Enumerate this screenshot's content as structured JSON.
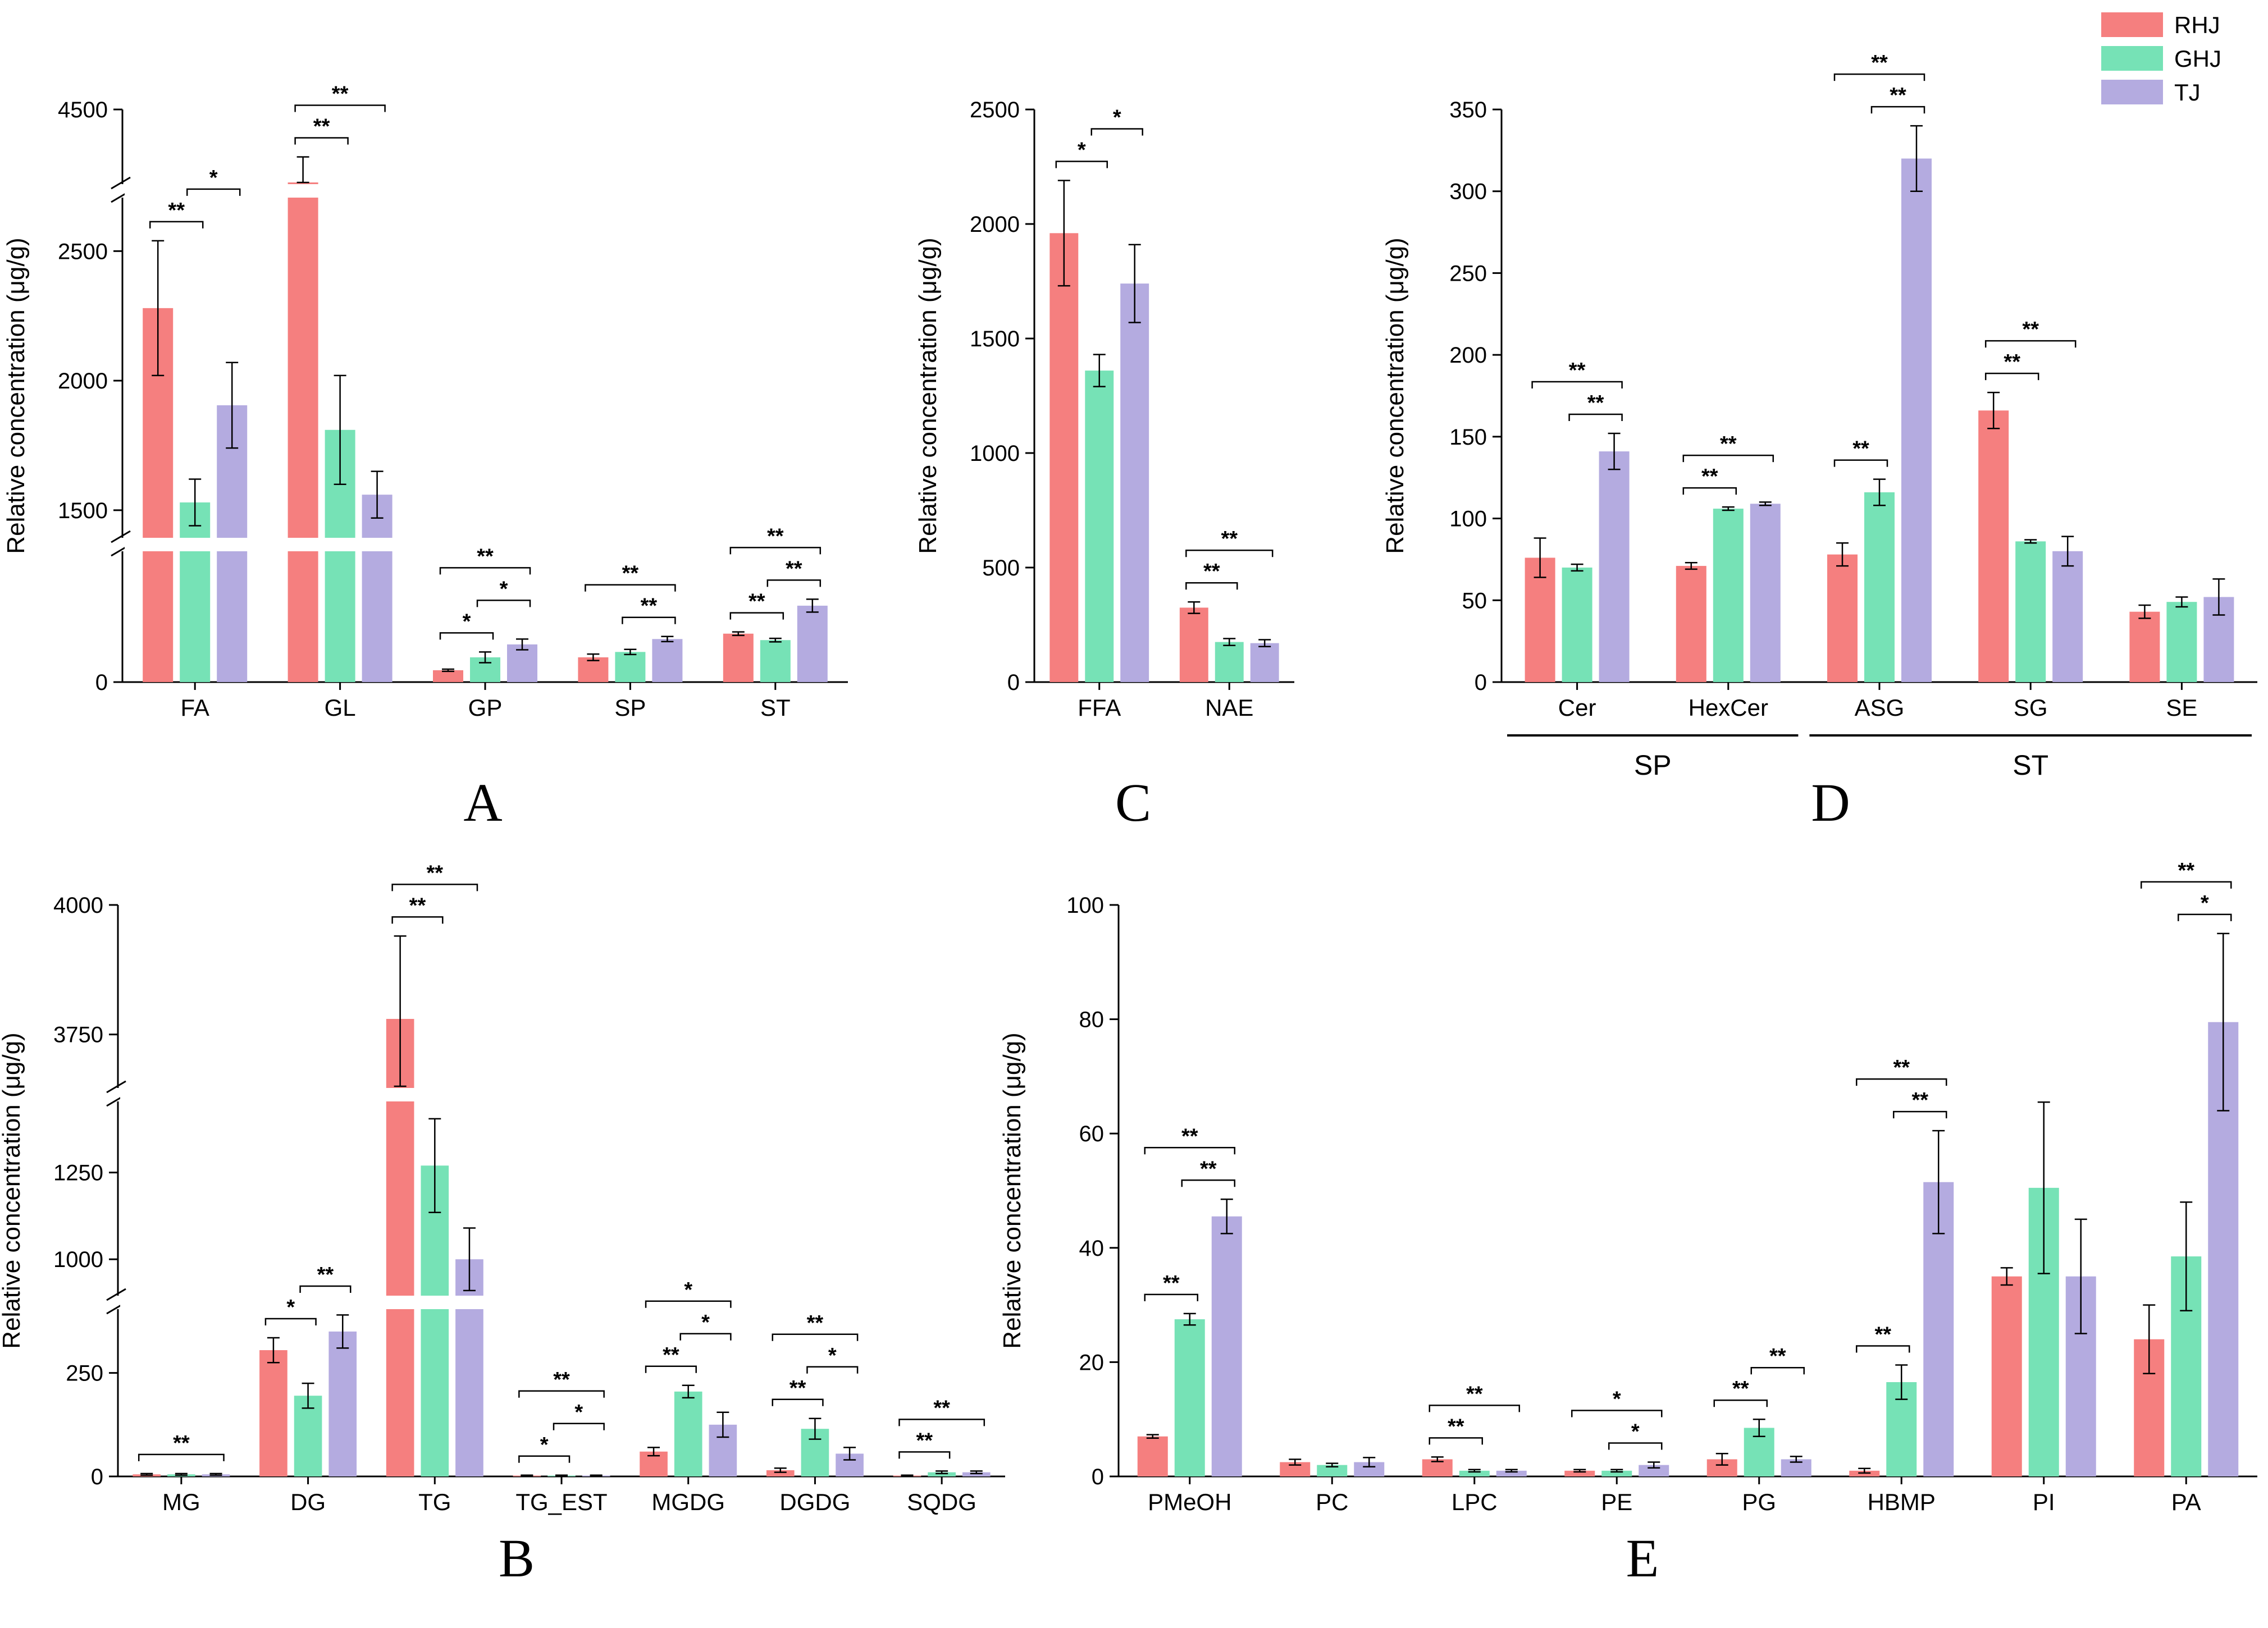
{
  "colors": {
    "RHJ": "#F57F7F",
    "GHJ": "#76E2B6",
    "TJ": "#B4ABE0"
  },
  "legend": [
    "RHJ",
    "GHJ",
    "TJ"
  ],
  "chart_data": [
    {
      "panel": "A",
      "type": "bar",
      "ylabel": "Relative concentration (μg/g)",
      "categories": [
        "FA",
        "GL",
        "GP",
        "SP",
        "ST"
      ],
      "ylim": [
        0,
        4500
      ],
      "axis_breaks": [
        [
          600,
          1400
        ],
        [
          2700,
          4300
        ]
      ],
      "yticks": [
        0,
        1500,
        2000,
        2500,
        4500
      ],
      "series": [
        {
          "name": "RHJ",
          "values": [
            2280,
            4250,
            55,
            115,
            225
          ],
          "errors": [
            260,
            120,
            5,
            15,
            8
          ]
        },
        {
          "name": "GHJ",
          "values": [
            1530,
            1810,
            115,
            140,
            195
          ],
          "errors": [
            90,
            210,
            25,
            12,
            8
          ]
        },
        {
          "name": "TJ",
          "values": [
            1905,
            1560,
            175,
            200,
            355
          ],
          "errors": [
            165,
            90,
            25,
            12,
            30
          ]
        }
      ],
      "significance": [
        {
          "cat": 0,
          "from": 0,
          "to": 1,
          "label": "**"
        },
        {
          "cat": 0,
          "from": 1,
          "to": 2,
          "label": "*"
        },
        {
          "cat": 1,
          "from": 0,
          "to": 1,
          "label": "**"
        },
        {
          "cat": 1,
          "from": 0,
          "to": 2,
          "label": "**"
        },
        {
          "cat": 2,
          "from": 0,
          "to": 1,
          "label": "*"
        },
        {
          "cat": 2,
          "from": 1,
          "to": 2,
          "label": "*"
        },
        {
          "cat": 2,
          "from": 0,
          "to": 2,
          "label": "**"
        },
        {
          "cat": 3,
          "from": 1,
          "to": 2,
          "label": "**"
        },
        {
          "cat": 3,
          "from": 0,
          "to": 2,
          "label": "**"
        },
        {
          "cat": 4,
          "from": 0,
          "to": 1,
          "label": "**"
        },
        {
          "cat": 4,
          "from": 1,
          "to": 2,
          "label": "**"
        },
        {
          "cat": 4,
          "from": 0,
          "to": 2,
          "label": "**"
        }
      ]
    },
    {
      "panel": "B",
      "type": "bar",
      "ylabel": "Relative concentration (μg/g)",
      "categories": [
        "MG",
        "DG",
        "TG",
        "TG_EST",
        "MGDG",
        "DGDG",
        "SQDG"
      ],
      "ylim": [
        0,
        4000
      ],
      "axis_breaks": [
        [
          400,
          900
        ],
        [
          1450,
          3650
        ]
      ],
      "yticks": [
        0,
        250,
        1000,
        1250,
        3750,
        4000
      ],
      "series": [
        {
          "name": "RHJ",
          "values": [
            5,
            305,
            3780,
            2,
            60,
            15,
            2
          ],
          "errors": [
            2,
            30,
            160,
            1,
            10,
            5,
            1
          ]
        },
        {
          "name": "GHJ",
          "values": [
            5,
            195,
            1270,
            2,
            205,
            115,
            10
          ],
          "errors": [
            2,
            30,
            135,
            1,
            15,
            25,
            3
          ]
        },
        {
          "name": "TJ",
          "values": [
            5,
            350,
            1000,
            2,
            125,
            55,
            10
          ],
          "errors": [
            2,
            40,
            90,
            1,
            30,
            15,
            3
          ]
        }
      ],
      "significance": [
        {
          "cat": 0,
          "from": 0,
          "to": 2,
          "label": "**"
        },
        {
          "cat": 1,
          "from": 0,
          "to": 1,
          "label": "*"
        },
        {
          "cat": 1,
          "from": 1,
          "to": 2,
          "label": "**"
        },
        {
          "cat": 2,
          "from": 0,
          "to": 1,
          "label": "**"
        },
        {
          "cat": 2,
          "from": 0,
          "to": 2,
          "label": "**"
        },
        {
          "cat": 3,
          "from": 0,
          "to": 1,
          "label": "*"
        },
        {
          "cat": 3,
          "from": 1,
          "to": 2,
          "label": "*"
        },
        {
          "cat": 3,
          "from": 0,
          "to": 2,
          "label": "**"
        },
        {
          "cat": 4,
          "from": 0,
          "to": 1,
          "label": "**"
        },
        {
          "cat": 4,
          "from": 1,
          "to": 2,
          "label": "*"
        },
        {
          "cat": 4,
          "from": 0,
          "to": 2,
          "label": "*"
        },
        {
          "cat": 5,
          "from": 0,
          "to": 1,
          "label": "**"
        },
        {
          "cat": 5,
          "from": 1,
          "to": 2,
          "label": "*"
        },
        {
          "cat": 5,
          "from": 0,
          "to": 2,
          "label": "**"
        },
        {
          "cat": 6,
          "from": 0,
          "to": 1,
          "label": "**"
        },
        {
          "cat": 6,
          "from": 0,
          "to": 2,
          "label": "**"
        }
      ]
    },
    {
      "panel": "C",
      "type": "bar",
      "ylabel": "Relative concentration (μg/g)",
      "categories": [
        "FFA",
        "NAE"
      ],
      "ylim": [
        0,
        2500
      ],
      "yticks": [
        0,
        500,
        1000,
        1500,
        2000,
        2500
      ],
      "series": [
        {
          "name": "RHJ",
          "values": [
            1960,
            325
          ],
          "errors": [
            230,
            25
          ]
        },
        {
          "name": "GHJ",
          "values": [
            1360,
            175
          ],
          "errors": [
            70,
            15
          ]
        },
        {
          "name": "TJ",
          "values": [
            1740,
            170
          ],
          "errors": [
            170,
            15
          ]
        }
      ],
      "significance": [
        {
          "cat": 0,
          "from": 0,
          "to": 1,
          "label": "*"
        },
        {
          "cat": 0,
          "from": 1,
          "to": 2,
          "label": "*"
        },
        {
          "cat": 1,
          "from": 0,
          "to": 1,
          "label": "**"
        },
        {
          "cat": 1,
          "from": 0,
          "to": 2,
          "label": "**"
        }
      ]
    },
    {
      "panel": "D",
      "type": "bar",
      "ylabel": "Relative concentration (μg/g)",
      "categories": [
        "Cer",
        "HexCer",
        "ASG",
        "SG",
        "SE"
      ],
      "ylim": [
        0,
        350
      ],
      "yticks": [
        0,
        50,
        100,
        150,
        200,
        250,
        300,
        350
      ],
      "groups": [
        {
          "label": "SP",
          "from": 0,
          "to": 1
        },
        {
          "label": "ST",
          "from": 2,
          "to": 4
        }
      ],
      "series": [
        {
          "name": "RHJ",
          "values": [
            76,
            71,
            78,
            166,
            43
          ],
          "errors": [
            12,
            2,
            7,
            11,
            4
          ]
        },
        {
          "name": "GHJ",
          "values": [
            70,
            106,
            116,
            86,
            49
          ],
          "errors": [
            2,
            1,
            8,
            1,
            3
          ]
        },
        {
          "name": "TJ",
          "values": [
            141,
            109,
            320,
            80,
            52
          ],
          "errors": [
            11,
            1,
            20,
            9,
            11
          ]
        }
      ],
      "significance": [
        {
          "cat": 0,
          "from": 1,
          "to": 2,
          "label": "**"
        },
        {
          "cat": 0,
          "from": 0,
          "to": 2,
          "label": "**"
        },
        {
          "cat": 1,
          "from": 0,
          "to": 1,
          "label": "**"
        },
        {
          "cat": 1,
          "from": 0,
          "to": 2,
          "label": "**"
        },
        {
          "cat": 2,
          "from": 0,
          "to": 1,
          "label": "**"
        },
        {
          "cat": 2,
          "from": 1,
          "to": 2,
          "label": "**"
        },
        {
          "cat": 2,
          "from": 0,
          "to": 2,
          "label": "**"
        },
        {
          "cat": 3,
          "from": 0,
          "to": 1,
          "label": "**"
        },
        {
          "cat": 3,
          "from": 0,
          "to": 2,
          "label": "**"
        }
      ]
    },
    {
      "panel": "E",
      "type": "bar",
      "ylabel": "Relative concentration (μg/g)",
      "categories": [
        "PMeOH",
        "PC",
        "LPC",
        "PE",
        "PG",
        "HBMP",
        "PI",
        "PA"
      ],
      "ylim": [
        0,
        100
      ],
      "yticks": [
        0,
        20,
        40,
        60,
        80,
        100
      ],
      "series": [
        {
          "name": "RHJ",
          "values": [
            7,
            2.5,
            3,
            1,
            3,
            1,
            35,
            24
          ],
          "errors": [
            0.3,
            0.5,
            0.4,
            0.2,
            1,
            0.4,
            1.5,
            6
          ]
        },
        {
          "name": "GHJ",
          "values": [
            27.5,
            2,
            1,
            1,
            8.5,
            16.5,
            50.5,
            38.5
          ],
          "errors": [
            1,
            0.3,
            0.2,
            0.2,
            1.5,
            3,
            15,
            9.5
          ]
        },
        {
          "name": "TJ",
          "values": [
            45.5,
            2.5,
            1,
            2,
            3,
            51.5,
            35,
            79.5
          ],
          "errors": [
            3,
            0.8,
            0.2,
            0.5,
            0.5,
            9,
            10,
            15.5
          ]
        }
      ],
      "significance": [
        {
          "cat": 0,
          "from": 0,
          "to": 1,
          "label": "**"
        },
        {
          "cat": 0,
          "from": 1,
          "to": 2,
          "label": "**"
        },
        {
          "cat": 0,
          "from": 0,
          "to": 2,
          "label": "**"
        },
        {
          "cat": 2,
          "from": 0,
          "to": 1,
          "label": "**"
        },
        {
          "cat": 2,
          "from": 0,
          "to": 2,
          "label": "**"
        },
        {
          "cat": 3,
          "from": 1,
          "to": 2,
          "label": "*"
        },
        {
          "cat": 3,
          "from": 0,
          "to": 2,
          "label": "*"
        },
        {
          "cat": 4,
          "from": 0,
          "to": 1,
          "label": "**"
        },
        {
          "cat": 4,
          "from": 1,
          "to": 2,
          "label": "**"
        },
        {
          "cat": 5,
          "from": 0,
          "to": 1,
          "label": "**"
        },
        {
          "cat": 5,
          "from": 1,
          "to": 2,
          "label": "**"
        },
        {
          "cat": 5,
          "from": 0,
          "to": 2,
          "label": "**"
        },
        {
          "cat": 7,
          "from": 1,
          "to": 2,
          "label": "*"
        },
        {
          "cat": 7,
          "from": 0,
          "to": 2,
          "label": "**"
        }
      ]
    }
  ]
}
